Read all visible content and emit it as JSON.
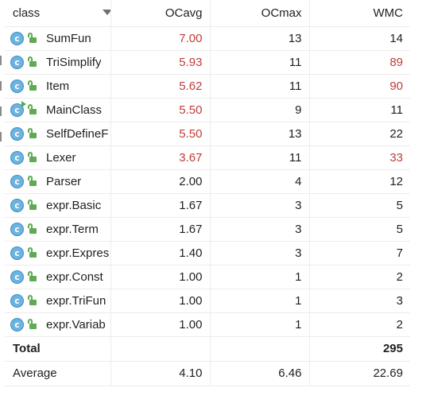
{
  "columns": [
    "class",
    "OCavg",
    "OCmax",
    "WMC"
  ],
  "colors": {
    "highlight": "#c23b3b",
    "classIcon": "#6cb3e0",
    "lockIcon": "#5faa52"
  },
  "rows": [
    {
      "name": "SumFun",
      "ocavg": "7.00",
      "ocmax": "13",
      "wmc": "14",
      "ocavg_red": true,
      "wmc_red": false,
      "main": false
    },
    {
      "name": "TriSimplify",
      "ocavg": "5.93",
      "ocmax": "11",
      "wmc": "89",
      "ocavg_red": true,
      "wmc_red": true,
      "main": false
    },
    {
      "name": "Item",
      "ocavg": "5.62",
      "ocmax": "11",
      "wmc": "90",
      "ocavg_red": true,
      "wmc_red": true,
      "main": false
    },
    {
      "name": "MainClass",
      "ocavg": "5.50",
      "ocmax": "9",
      "wmc": "11",
      "ocavg_red": true,
      "wmc_red": false,
      "main": true
    },
    {
      "name": "SelfDefineF",
      "ocavg": "5.50",
      "ocmax": "13",
      "wmc": "22",
      "ocavg_red": true,
      "wmc_red": false,
      "main": false
    },
    {
      "name": "Lexer",
      "ocavg": "3.67",
      "ocmax": "11",
      "wmc": "33",
      "ocavg_red": true,
      "wmc_red": true,
      "main": false
    },
    {
      "name": "Parser",
      "ocavg": "2.00",
      "ocmax": "4",
      "wmc": "12",
      "ocavg_red": false,
      "wmc_red": false,
      "main": false
    },
    {
      "name": "expr.Basic",
      "ocavg": "1.67",
      "ocmax": "3",
      "wmc": "5",
      "ocavg_red": false,
      "wmc_red": false,
      "main": false
    },
    {
      "name": "expr.Term",
      "ocavg": "1.67",
      "ocmax": "3",
      "wmc": "5",
      "ocavg_red": false,
      "wmc_red": false,
      "main": false
    },
    {
      "name": "expr.Expres",
      "ocavg": "1.40",
      "ocmax": "3",
      "wmc": "7",
      "ocavg_red": false,
      "wmc_red": false,
      "main": false
    },
    {
      "name": "expr.Const",
      "ocavg": "1.00",
      "ocmax": "1",
      "wmc": "2",
      "ocavg_red": false,
      "wmc_red": false,
      "main": false
    },
    {
      "name": "expr.TriFun",
      "ocavg": "1.00",
      "ocmax": "1",
      "wmc": "3",
      "ocavg_red": false,
      "wmc_red": false,
      "main": false
    },
    {
      "name": "expr.Variab",
      "ocavg": "1.00",
      "ocmax": "1",
      "wmc": "2",
      "ocavg_red": false,
      "wmc_red": false,
      "main": false
    }
  ],
  "total": {
    "label": "Total",
    "ocavg": "",
    "ocmax": "",
    "wmc": "295"
  },
  "average": {
    "label": "Average",
    "ocavg": "4.10",
    "ocmax": "6.46",
    "wmc": "22.69"
  }
}
